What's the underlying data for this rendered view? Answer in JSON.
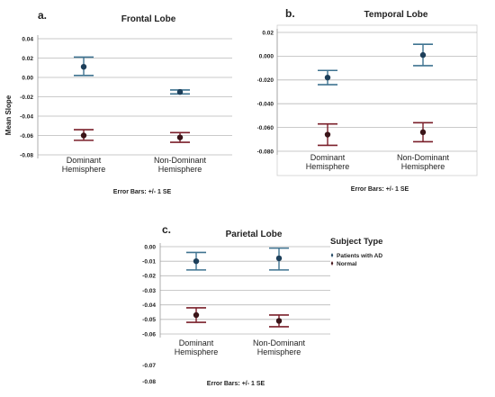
{
  "colors": {
    "patients": "#3f7390",
    "normal": "#7a1f2a",
    "patients_point": "#1d3f5a",
    "normal_point": "#3a1418"
  },
  "legend": {
    "title": "Subject Type",
    "items": [
      {
        "label": "Patients with AD",
        "series": "patients"
      },
      {
        "label": "Normal",
        "series": "normal"
      }
    ]
  },
  "chart_data": [
    {
      "type": "scatter",
      "panel": "a.",
      "title": "Frontal Lobe",
      "ylabel": "Mean Slope",
      "xlabel": "",
      "error_note": "Error Bars: +/- 1 SE",
      "categories": [
        "Dominant Hemisphere",
        "Non-Dominant Hemisphere"
      ],
      "cat_lines": [
        [
          "Dominant",
          "Hemisphere"
        ],
        [
          "Non-Dominant",
          "Hemisphere"
        ]
      ],
      "ylim": [
        -0.08,
        0.04
      ],
      "ticks": [
        0.04,
        0.02,
        0.0,
        -0.02,
        -0.04,
        -0.06,
        -0.08
      ],
      "tick_labels": [
        "0.04",
        "0.02",
        "0.00",
        "-0.02",
        "-0.04",
        "-0.06",
        "-0.08"
      ],
      "grid": true,
      "series": [
        {
          "name": "Patients with AD",
          "key": "patients",
          "mean": [
            0.011,
            -0.015
          ],
          "lower": [
            0.002,
            -0.017
          ],
          "upper": [
            0.021,
            -0.013
          ]
        },
        {
          "name": "Normal",
          "key": "normal",
          "mean": [
            -0.06,
            -0.062
          ],
          "lower": [
            -0.065,
            -0.067
          ],
          "upper": [
            -0.054,
            -0.057
          ]
        }
      ]
    },
    {
      "type": "scatter",
      "panel": "b.",
      "title": "Temporal Lobe",
      "ylabel": "",
      "xlabel": "",
      "error_note": "Error Bars: +/- 1 SE",
      "categories": [
        "Dominant Hemisphere",
        "Non-Dominant Hemisphere"
      ],
      "cat_lines": [
        [
          "Dominant",
          "Hemisphere"
        ],
        [
          "Non-Dominant",
          "Hemisphere"
        ]
      ],
      "ylim": [
        -0.08,
        0.02
      ],
      "ticks": [
        0.02,
        0.0,
        -0.02,
        -0.04,
        -0.06,
        -0.08
      ],
      "tick_labels": [
        "0.02",
        "0.000",
        "-0.020",
        "-0.040",
        "-0.060",
        "-0.080"
      ],
      "grid": true,
      "series": [
        {
          "name": "Patients with AD",
          "key": "patients",
          "mean": [
            -0.018,
            0.001
          ],
          "lower": [
            -0.024,
            -0.008
          ],
          "upper": [
            -0.012,
            0.01
          ]
        },
        {
          "name": "Normal",
          "key": "normal",
          "mean": [
            -0.066,
            -0.064
          ],
          "lower": [
            -0.075,
            -0.072
          ],
          "upper": [
            -0.057,
            -0.056
          ]
        }
      ]
    },
    {
      "type": "scatter",
      "panel": "c.",
      "title": "Parietal Lobe",
      "ylabel": "",
      "xlabel": "",
      "error_note": "Error Bars: +/- 1 SE",
      "categories": [
        "Dominant Hemisphere",
        "Non-Dominant Hemisphere"
      ],
      "cat_lines": [
        [
          "Dominant",
          "Hemisphere"
        ],
        [
          "Non-Dominant",
          "Hemisphere"
        ]
      ],
      "ylim": [
        -0.06,
        0.0
      ],
      "ticks": [
        0.0,
        -0.01,
        -0.02,
        -0.03,
        -0.04,
        -0.05,
        -0.06
      ],
      "tick_labels": [
        "0.00",
        "-0.01",
        "-0.02",
        "-0.03",
        "-0.04",
        "-0.05",
        "-0.06"
      ],
      "extra_tick_labels": [
        "-0.07",
        "-0.08"
      ],
      "grid": true,
      "series": [
        {
          "name": "Patients with AD",
          "key": "patients",
          "mean": [
            -0.01,
            -0.008
          ],
          "lower": [
            -0.016,
            -0.016
          ],
          "upper": [
            -0.004,
            -0.001
          ]
        },
        {
          "name": "Normal",
          "key": "normal",
          "mean": [
            -0.047,
            -0.051
          ],
          "lower": [
            -0.052,
            -0.055
          ],
          "upper": [
            -0.042,
            -0.047
          ]
        }
      ]
    }
  ]
}
